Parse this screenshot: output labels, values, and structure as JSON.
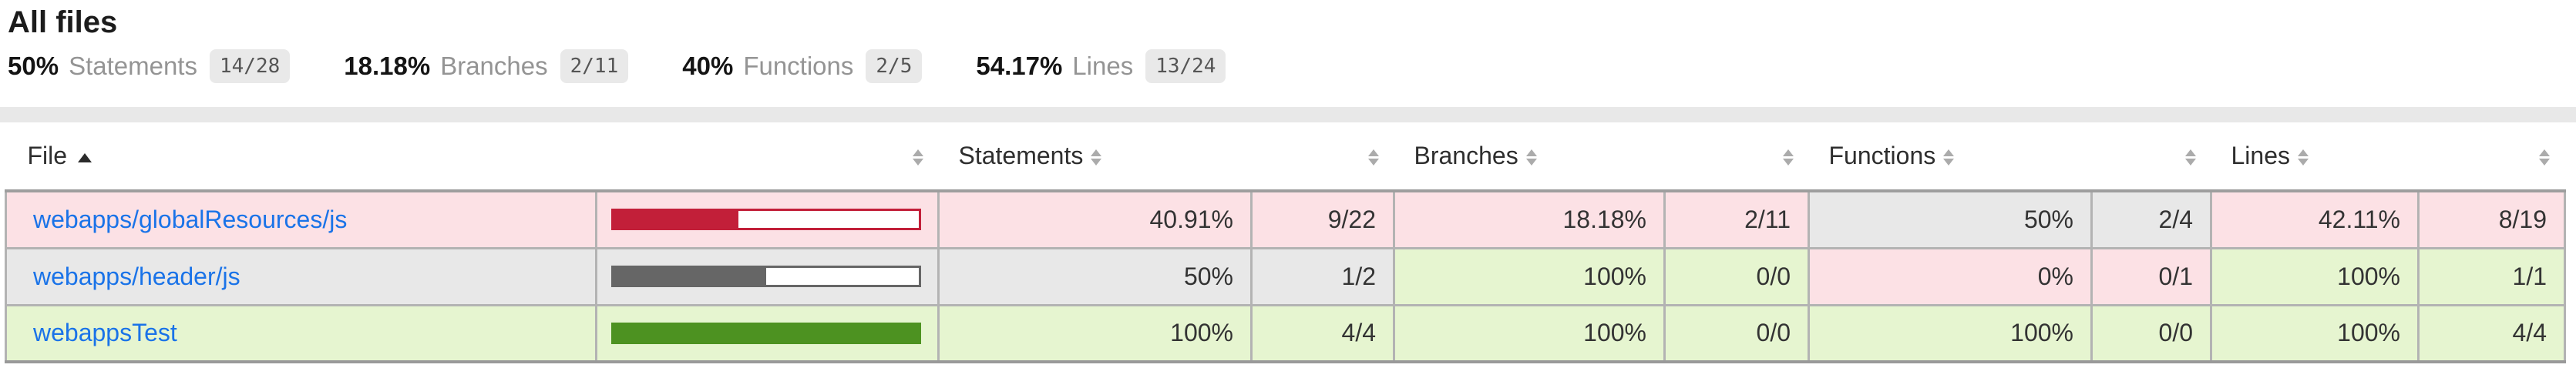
{
  "header": {
    "title": "All files",
    "metrics": [
      {
        "pct": "50%",
        "label": "Statements",
        "fraction": "14/28"
      },
      {
        "pct": "18.18%",
        "label": "Branches",
        "fraction": "2/11"
      },
      {
        "pct": "40%",
        "label": "Functions",
        "fraction": "2/5"
      },
      {
        "pct": "54.17%",
        "label": "Lines",
        "fraction": "13/24"
      }
    ]
  },
  "table": {
    "columns": {
      "file": "File",
      "statements": "Statements",
      "branches": "Branches",
      "functions": "Functions",
      "lines": "Lines"
    },
    "sort": {
      "column": "File",
      "direction": "ascending"
    },
    "rows": [
      {
        "file": "webapps/globalResources/js",
        "file_level": "low",
        "bar_pct": 40.91,
        "bar_level": "low",
        "statements_pct": "40.91%",
        "statements_abs": "9/22",
        "statements_level": "low",
        "branches_pct": "18.18%",
        "branches_abs": "2/11",
        "branches_level": "low",
        "functions_pct": "50%",
        "functions_abs": "2/4",
        "functions_level": "medium",
        "lines_pct": "42.11%",
        "lines_abs": "8/19",
        "lines_level": "low"
      },
      {
        "file": "webapps/header/js",
        "file_level": "medium",
        "bar_pct": 50,
        "bar_level": "medium",
        "statements_pct": "50%",
        "statements_abs": "1/2",
        "statements_level": "medium",
        "branches_pct": "100%",
        "branches_abs": "0/0",
        "branches_level": "high",
        "functions_pct": "0%",
        "functions_abs": "0/1",
        "functions_level": "low",
        "lines_pct": "100%",
        "lines_abs": "1/1",
        "lines_level": "high"
      },
      {
        "file": "webappsTest",
        "file_level": "high",
        "bar_pct": 100,
        "bar_level": "high",
        "statements_pct": "100%",
        "statements_abs": "4/4",
        "statements_level": "high",
        "branches_pct": "100%",
        "branches_abs": "0/0",
        "branches_level": "high",
        "functions_pct": "100%",
        "functions_abs": "0/0",
        "functions_level": "high",
        "lines_pct": "100%",
        "lines_abs": "4/4",
        "lines_level": "high"
      }
    ]
  },
  "colors": {
    "low_bg": "#FCE1E5",
    "medium_bg": "#E8E8E8",
    "high_bg": "#E6F5D0",
    "low_fill": "#C21F39",
    "medium_fill": "#666666",
    "high_fill": "#4D9221",
    "link": "#1A73E8",
    "status_line": "#E8E8E8"
  }
}
